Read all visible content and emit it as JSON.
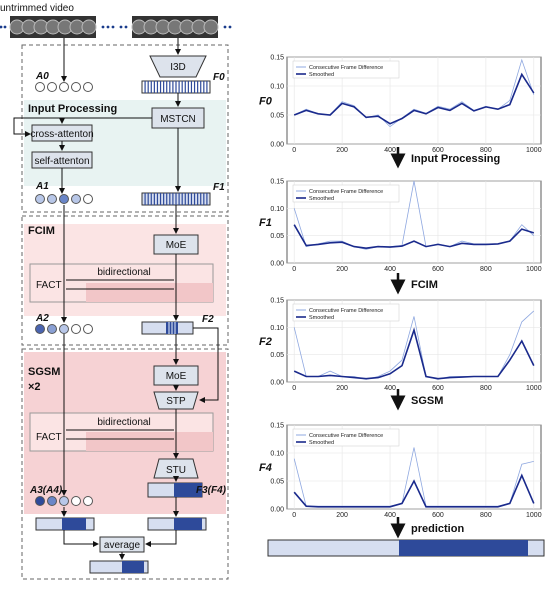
{
  "diagram": {
    "video_label": "untrimmed video",
    "sections": {
      "input_processing": "Input Processing",
      "fcim": "FCIM",
      "sgsm": "SGSM",
      "sgsm_repeat": "×2"
    },
    "blocks": {
      "i3d": "I3D",
      "mstcn": "MSTCN",
      "cross_attention": "cross-attenton",
      "self_attention": "self-attenton",
      "moe": "MoE",
      "fact": "FACT",
      "bidirectional": "bidirectional",
      "stp": "STP",
      "stu": "STU",
      "average": "average"
    },
    "features": {
      "a0": "A0",
      "f0": "F0",
      "a1": "A1",
      "f1": "F1",
      "a2": "A2",
      "f2": "F2",
      "a3": "A3(A4)",
      "f3": "F3(F4)"
    },
    "steps": [
      "Input Processing",
      "FCIM",
      "SGSM",
      "prediction"
    ]
  },
  "chart_data": [
    {
      "type": "line",
      "title": "F0",
      "x_range": [
        0,
        1000
      ],
      "ylim": [
        0.0,
        0.15
      ],
      "yticks": [
        0.0,
        0.05,
        0.1,
        0.15
      ],
      "xticks": [
        0,
        200,
        400,
        600,
        800,
        1000
      ],
      "legend_position": "top-left",
      "series": [
        {
          "name": "Consecutive Frame Difference",
          "color": "#8fa8e0",
          "x": [
            0,
            50,
            100,
            150,
            200,
            250,
            300,
            350,
            400,
            450,
            500,
            550,
            600,
            650,
            700,
            750,
            800,
            850,
            900,
            950,
            1000
          ],
          "y": [
            0.05,
            0.06,
            0.052,
            0.05,
            0.073,
            0.066,
            0.045,
            0.05,
            0.03,
            0.045,
            0.06,
            0.053,
            0.065,
            0.06,
            0.073,
            0.058,
            0.065,
            0.06,
            0.075,
            0.145,
            0.085
          ]
        },
        {
          "name": "Smoothed",
          "color": "#1a2a8c",
          "x": [
            0,
            50,
            100,
            150,
            200,
            250,
            300,
            350,
            400,
            450,
            500,
            550,
            600,
            650,
            700,
            750,
            800,
            850,
            900,
            950,
            1000
          ],
          "y": [
            0.05,
            0.058,
            0.052,
            0.05,
            0.07,
            0.064,
            0.046,
            0.048,
            0.035,
            0.044,
            0.058,
            0.052,
            0.063,
            0.058,
            0.07,
            0.057,
            0.064,
            0.06,
            0.068,
            0.12,
            0.088
          ]
        }
      ]
    },
    {
      "type": "line",
      "title": "F1",
      "x_range": [
        0,
        1000
      ],
      "ylim": [
        0.0,
        0.15
      ],
      "yticks": [
        0.0,
        0.05,
        0.1,
        0.15
      ],
      "xticks": [
        0,
        200,
        400,
        600,
        800,
        1000
      ],
      "legend_position": "top-left",
      "series": [
        {
          "name": "Consecutive Frame Difference",
          "color": "#8fa8e0",
          "x": [
            0,
            50,
            100,
            150,
            200,
            250,
            300,
            350,
            400,
            450,
            500,
            550,
            600,
            650,
            700,
            750,
            800,
            850,
            900,
            950,
            1000
          ],
          "y": [
            0.1,
            0.03,
            0.035,
            0.04,
            0.04,
            0.03,
            0.025,
            0.03,
            0.03,
            0.032,
            0.15,
            0.03,
            0.035,
            0.03,
            0.04,
            0.035,
            0.035,
            0.035,
            0.04,
            0.07,
            0.05
          ]
        },
        {
          "name": "Smoothed",
          "color": "#1a2a8c",
          "x": [
            0,
            50,
            100,
            150,
            200,
            250,
            300,
            350,
            400,
            450,
            500,
            550,
            600,
            650,
            700,
            750,
            800,
            850,
            900,
            950,
            1000
          ],
          "y": [
            0.07,
            0.032,
            0.034,
            0.037,
            0.038,
            0.03,
            0.027,
            0.03,
            0.029,
            0.031,
            0.04,
            0.03,
            0.034,
            0.03,
            0.036,
            0.034,
            0.034,
            0.035,
            0.04,
            0.062,
            0.055
          ]
        }
      ]
    },
    {
      "type": "line",
      "title": "F2",
      "x_range": [
        0,
        1000
      ],
      "ylim": [
        0.0,
        0.15
      ],
      "yticks": [
        0.0,
        0.05,
        0.1,
        0.15
      ],
      "xticks": [
        0,
        200,
        400,
        600,
        800,
        1000
      ],
      "legend_position": "top-left",
      "series": [
        {
          "name": "Consecutive Frame Difference",
          "color": "#8fa8e0",
          "x": [
            0,
            50,
            100,
            150,
            200,
            250,
            300,
            350,
            400,
            450,
            500,
            550,
            600,
            650,
            700,
            750,
            800,
            850,
            900,
            950,
            1000
          ],
          "y": [
            0.1,
            0.01,
            0.01,
            0.02,
            0.01,
            0.01,
            0.005,
            0.01,
            0.02,
            0.04,
            0.12,
            0.01,
            0.005,
            0.01,
            0.01,
            0.01,
            0.01,
            0.01,
            0.05,
            0.11,
            0.13
          ]
        },
        {
          "name": "Smoothed",
          "color": "#1a2a8c",
          "x": [
            0,
            50,
            100,
            150,
            200,
            250,
            300,
            350,
            400,
            450,
            500,
            550,
            600,
            650,
            700,
            750,
            800,
            850,
            900,
            950,
            1000
          ],
          "y": [
            0.02,
            0.01,
            0.01,
            0.012,
            0.01,
            0.008,
            0.006,
            0.008,
            0.015,
            0.03,
            0.095,
            0.01,
            0.006,
            0.008,
            0.009,
            0.01,
            0.01,
            0.01,
            0.04,
            0.075,
            0.03
          ]
        }
      ]
    },
    {
      "type": "line",
      "title": "F4",
      "x_range": [
        0,
        1000
      ],
      "ylim": [
        0.0,
        0.15
      ],
      "yticks": [
        0.0,
        0.05,
        0.1,
        0.15
      ],
      "xticks": [
        0,
        200,
        400,
        600,
        800,
        1000
      ],
      "legend_position": "top-left",
      "series": [
        {
          "name": "Consecutive Frame Difference",
          "color": "#8fa8e0",
          "x": [
            0,
            50,
            100,
            150,
            200,
            250,
            300,
            350,
            400,
            450,
            500,
            550,
            600,
            650,
            700,
            750,
            800,
            850,
            900,
            950,
            1000
          ],
          "y": [
            0.09,
            0.005,
            0.005,
            0.005,
            0.005,
            0.005,
            0.005,
            0.005,
            0.005,
            0.01,
            0.11,
            0.005,
            0.005,
            0.005,
            0.005,
            0.005,
            0.005,
            0.005,
            0.01,
            0.08,
            0.085
          ]
        },
        {
          "name": "Smoothed",
          "color": "#1a2a8c",
          "x": [
            0,
            50,
            100,
            150,
            200,
            250,
            300,
            350,
            400,
            450,
            500,
            550,
            600,
            650,
            700,
            750,
            800,
            850,
            900,
            950,
            1000
          ],
          "y": [
            0.03,
            0.005,
            0.004,
            0.004,
            0.004,
            0.004,
            0.004,
            0.004,
            0.004,
            0.01,
            0.05,
            0.004,
            0.004,
            0.004,
            0.004,
            0.004,
            0.004,
            0.004,
            0.01,
            0.06,
            0.01
          ]
        }
      ]
    }
  ]
}
